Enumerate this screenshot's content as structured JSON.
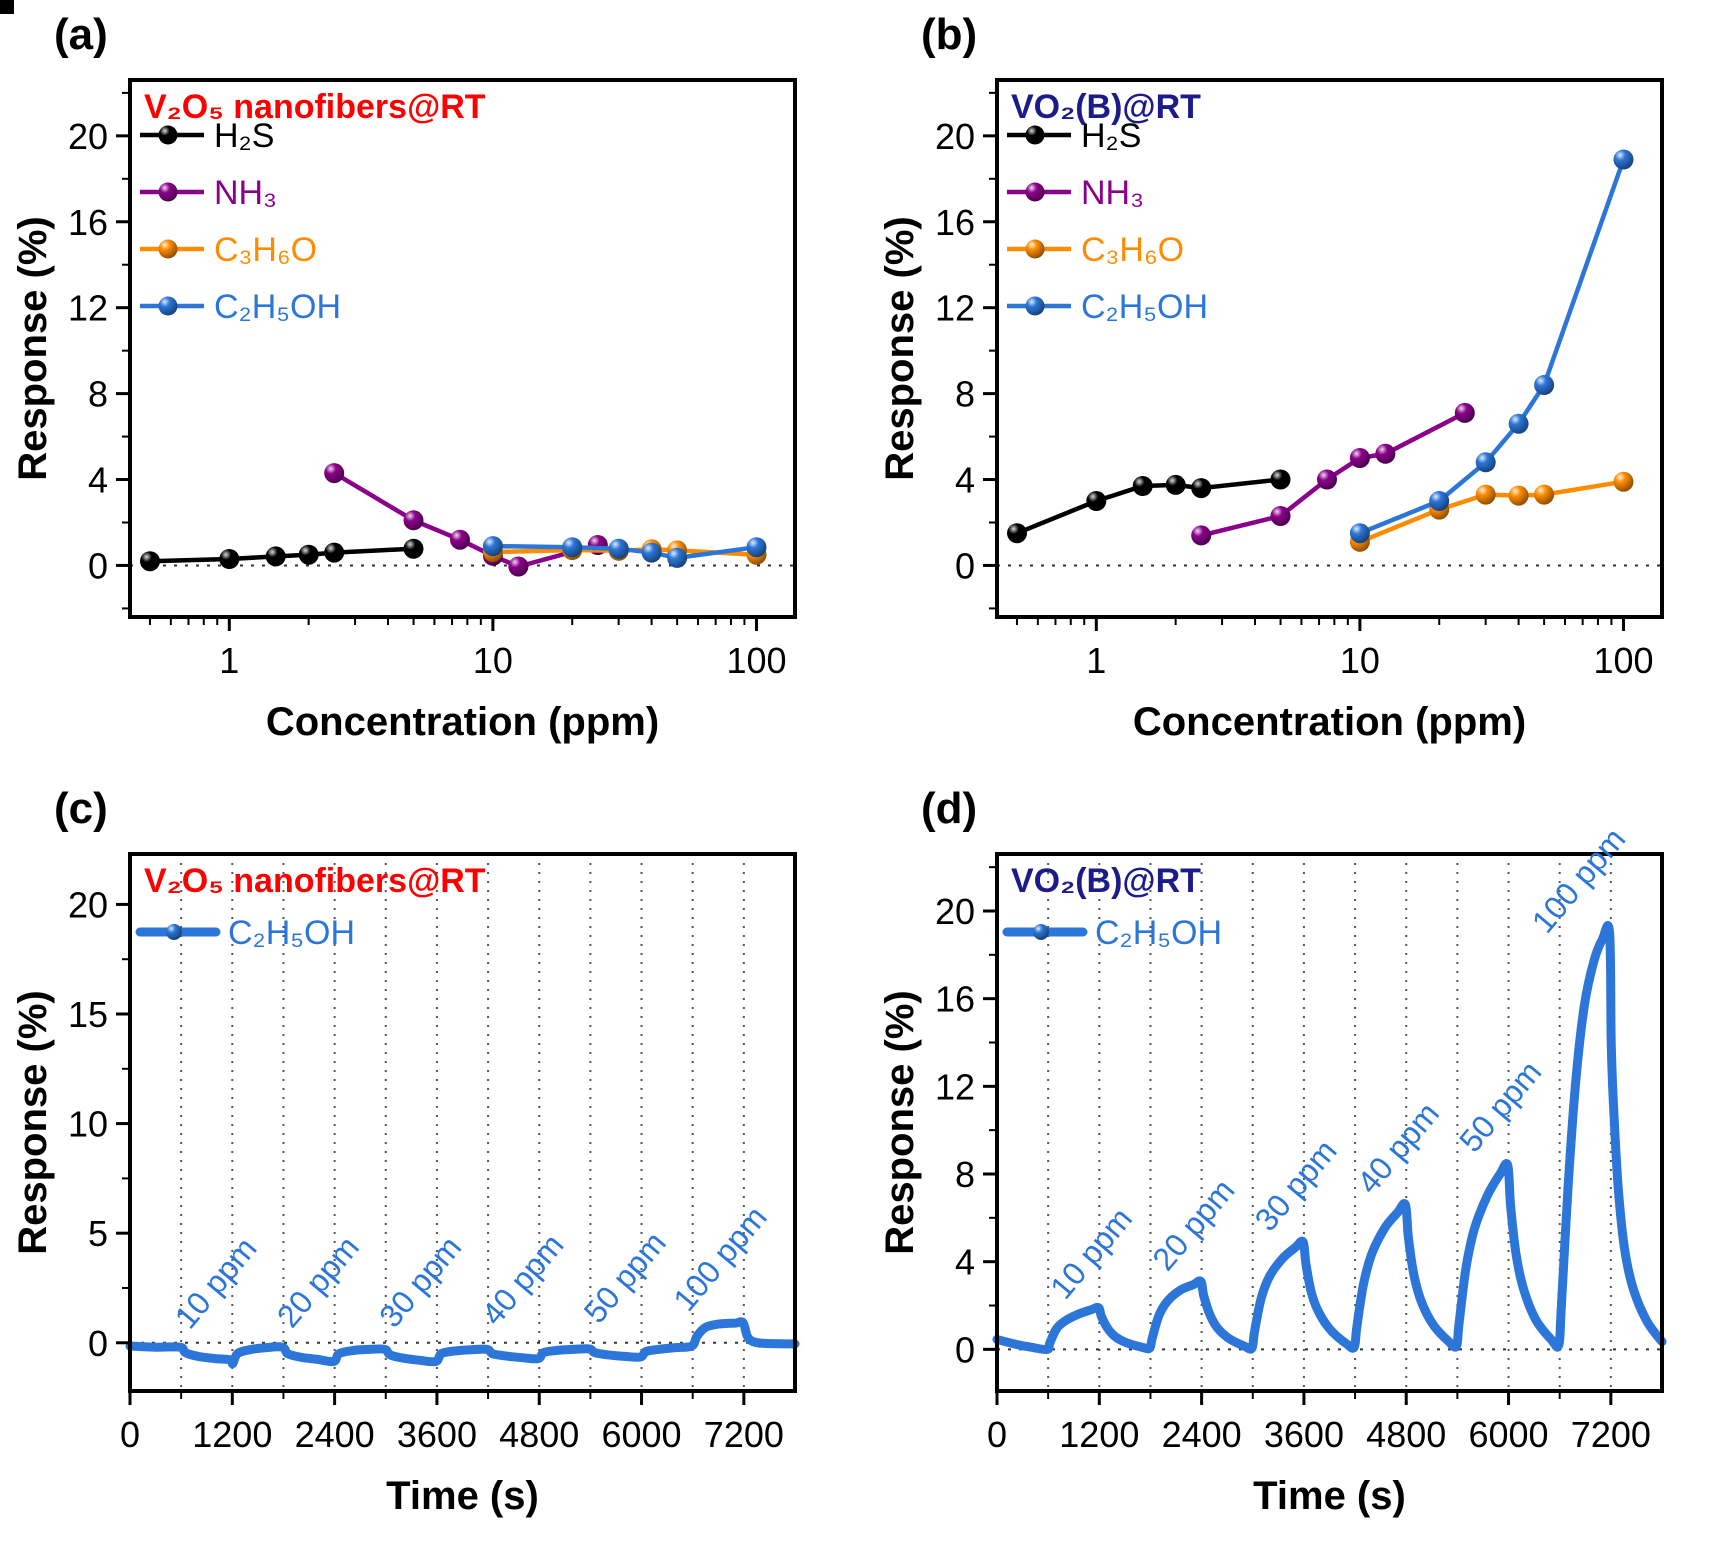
{
  "chart_data": [
    {
      "id": "a",
      "label": "(a)",
      "type": "scatter-line",
      "title": "V₂O₅ nanofibers@RT",
      "title_color": "#FF0000",
      "xlabel": "Concentration (ppm)",
      "ylabel": "Response (%)",
      "xscale": "log",
      "xlim": [
        0.42,
        140
      ],
      "xticks": [
        1,
        10,
        100
      ],
      "ylim": [
        -2.4,
        22.6
      ],
      "yticks": [
        0,
        4,
        8,
        12,
        16,
        20
      ],
      "yminor": 2,
      "zeroline": true,
      "legend_position": "top-left",
      "series": [
        {
          "name": "H₂S",
          "color": "#000000",
          "x": [
            0.5,
            1,
            1.5,
            2,
            2.5,
            5
          ],
          "y": [
            0.2,
            0.3,
            0.42,
            0.5,
            0.6,
            0.78
          ]
        },
        {
          "name": "NH₃",
          "color": "#8B008B",
          "x": [
            2.5,
            5,
            7.5,
            10,
            12.5,
            25
          ],
          "y": [
            4.3,
            2.1,
            1.2,
            0.45,
            -0.05,
            0.95
          ]
        },
        {
          "name": "C₃H₆O",
          "color": "#FF8C00",
          "x": [
            10,
            20,
            30,
            40,
            50,
            100
          ],
          "y": [
            0.62,
            0.72,
            0.68,
            0.75,
            0.7,
            0.5
          ]
        },
        {
          "name": "C₂H₅OH",
          "color": "#2B76D8",
          "x": [
            10,
            20,
            30,
            40,
            50,
            100
          ],
          "y": [
            0.9,
            0.85,
            0.78,
            0.6,
            0.35,
            0.85
          ]
        }
      ]
    },
    {
      "id": "b",
      "label": "(b)",
      "type": "scatter-line",
      "title": "VO₂(B)@RT",
      "title_color": "#1B1B8A",
      "xlabel": "Concentration (ppm)",
      "ylabel": "Response (%)",
      "xscale": "log",
      "xlim": [
        0.42,
        140
      ],
      "xticks": [
        1,
        10,
        100
      ],
      "ylim": [
        -2.4,
        22.6
      ],
      "yticks": [
        0,
        4,
        8,
        12,
        16,
        20
      ],
      "yminor": 2,
      "zeroline": true,
      "legend_position": "top-left",
      "series": [
        {
          "name": "H₂S",
          "color": "#000000",
          "x": [
            0.5,
            1,
            1.5,
            2,
            2.5,
            5
          ],
          "y": [
            1.5,
            3.0,
            3.7,
            3.75,
            3.6,
            4.0
          ]
        },
        {
          "name": "NH₃",
          "color": "#8B008B",
          "x": [
            2.5,
            5,
            7.5,
            10,
            12.5,
            25
          ],
          "y": [
            1.4,
            2.3,
            4.0,
            5.0,
            5.2,
            7.1
          ]
        },
        {
          "name": "C₃H₆O",
          "color": "#FF8C00",
          "x": [
            10,
            20,
            30,
            40,
            50,
            100
          ],
          "y": [
            1.1,
            2.6,
            3.3,
            3.25,
            3.3,
            3.9
          ]
        },
        {
          "name": "C₂H₅OH",
          "color": "#2B76D8",
          "x": [
            10,
            20,
            30,
            40,
            50,
            100
          ],
          "y": [
            1.5,
            3.0,
            4.8,
            6.6,
            8.4,
            18.9
          ]
        }
      ]
    },
    {
      "id": "c",
      "label": "(c)",
      "type": "time-series",
      "title": "V₂O₅ nanofibers@RT",
      "title_color": "#FF0000",
      "xlabel": "Time (s)",
      "ylabel": "Response (%)",
      "xscale": "linear",
      "xlim": [
        0,
        7800
      ],
      "xticks": [
        0,
        1200,
        2400,
        3600,
        4800,
        6000,
        7200
      ],
      "xminor": 600,
      "grid_every": 600,
      "ylim": [
        -2.2,
        22.3
      ],
      "yticks": [
        0,
        5,
        10,
        15,
        20
      ],
      "yminor": 2.5,
      "zeroline": true,
      "annotation_rotation": -50,
      "annotations": [
        {
          "text": "10 ppm",
          "t": 700,
          "y": 0.55
        },
        {
          "text": "20 ppm",
          "t": 1900,
          "y": 0.6
        },
        {
          "text": "30 ppm",
          "t": 3100,
          "y": 0.6
        },
        {
          "text": "40 ppm",
          "t": 4300,
          "y": 0.7
        },
        {
          "text": "50 ppm",
          "t": 5500,
          "y": 0.8
        },
        {
          "text": "100 ppm",
          "t": 6550,
          "y": 1.35
        }
      ],
      "series": [
        {
          "name": "C₂H₅OH",
          "color": "#2B76D8",
          "points": [
            [
              0,
              -0.15
            ],
            [
              300,
              -0.2
            ],
            [
              590,
              -0.2
            ],
            [
              650,
              -0.45
            ],
            [
              800,
              -0.62
            ],
            [
              1000,
              -0.72
            ],
            [
              1180,
              -0.78
            ],
            [
              1205,
              -0.95
            ],
            [
              1260,
              -0.5
            ],
            [
              1400,
              -0.32
            ],
            [
              1600,
              -0.22
            ],
            [
              1790,
              -0.2
            ],
            [
              1850,
              -0.5
            ],
            [
              2000,
              -0.66
            ],
            [
              2200,
              -0.76
            ],
            [
              2390,
              -0.85
            ],
            [
              2450,
              -0.5
            ],
            [
              2600,
              -0.36
            ],
            [
              2800,
              -0.3
            ],
            [
              2990,
              -0.3
            ],
            [
              3050,
              -0.55
            ],
            [
              3200,
              -0.7
            ],
            [
              3400,
              -0.8
            ],
            [
              3590,
              -0.85
            ],
            [
              3650,
              -0.5
            ],
            [
              3800,
              -0.38
            ],
            [
              4000,
              -0.32
            ],
            [
              4190,
              -0.3
            ],
            [
              4250,
              -0.5
            ],
            [
              4400,
              -0.6
            ],
            [
              4600,
              -0.68
            ],
            [
              4790,
              -0.72
            ],
            [
              4850,
              -0.45
            ],
            [
              5000,
              -0.35
            ],
            [
              5200,
              -0.3
            ],
            [
              5390,
              -0.28
            ],
            [
              5450,
              -0.45
            ],
            [
              5600,
              -0.55
            ],
            [
              5800,
              -0.62
            ],
            [
              5990,
              -0.65
            ],
            [
              6050,
              -0.4
            ],
            [
              6200,
              -0.3
            ],
            [
              6400,
              -0.22
            ],
            [
              6590,
              -0.15
            ],
            [
              6650,
              0.3
            ],
            [
              6750,
              0.7
            ],
            [
              6900,
              0.85
            ],
            [
              7100,
              0.9
            ],
            [
              7190,
              0.92
            ],
            [
              7240,
              0.3
            ],
            [
              7310,
              0.05
            ],
            [
              7450,
              -0.03
            ],
            [
              7800,
              -0.05
            ]
          ]
        }
      ]
    },
    {
      "id": "d",
      "label": "(d)",
      "type": "time-series",
      "title": "VO₂(B)@RT",
      "title_color": "#1B1B8A",
      "xlabel": "Time (s)",
      "ylabel": "Response (%)",
      "xscale": "linear",
      "xlim": [
        0,
        7800
      ],
      "xticks": [
        0,
        1200,
        2400,
        3600,
        4800,
        6000,
        7200
      ],
      "xminor": 600,
      "grid_every": 600,
      "ylim": [
        -1.9,
        22.6
      ],
      "yticks": [
        0,
        4,
        8,
        12,
        16,
        20
      ],
      "yminor": 2,
      "zeroline": true,
      "annotation_rotation": -50,
      "annotations": [
        {
          "text": "10 ppm",
          "t": 800,
          "y": 2.2
        },
        {
          "text": "20 ppm",
          "t": 2000,
          "y": 3.5
        },
        {
          "text": "30 ppm",
          "t": 3200,
          "y": 5.3
        },
        {
          "text": "40 ppm",
          "t": 4400,
          "y": 7.0
        },
        {
          "text": "50 ppm",
          "t": 5600,
          "y": 8.9
        },
        {
          "text": "100 ppm",
          "t": 6450,
          "y": 18.9
        }
      ],
      "series": [
        {
          "name": "C₂H₅OH",
          "color": "#2B76D8",
          "points": [
            [
              0,
              0.45
            ],
            [
              200,
              0.25
            ],
            [
              400,
              0.1
            ],
            [
              590,
              0.0
            ],
            [
              620,
              0.3
            ],
            [
              700,
              0.95
            ],
            [
              800,
              1.3
            ],
            [
              950,
              1.6
            ],
            [
              1100,
              1.8
            ],
            [
              1190,
              1.9
            ],
            [
              1225,
              1.5
            ],
            [
              1290,
              1.0
            ],
            [
              1380,
              0.6
            ],
            [
              1520,
              0.3
            ],
            [
              1700,
              0.1
            ],
            [
              1790,
              0.05
            ],
            [
              1820,
              0.5
            ],
            [
              1900,
              1.55
            ],
            [
              2000,
              2.2
            ],
            [
              2150,
              2.7
            ],
            [
              2300,
              2.95
            ],
            [
              2390,
              3.1
            ],
            [
              2425,
              2.45
            ],
            [
              2490,
              1.65
            ],
            [
              2580,
              1.0
            ],
            [
              2720,
              0.5
            ],
            [
              2900,
              0.15
            ],
            [
              2990,
              0.05
            ],
            [
              3020,
              0.8
            ],
            [
              3100,
              2.35
            ],
            [
              3200,
              3.35
            ],
            [
              3350,
              4.15
            ],
            [
              3500,
              4.65
            ],
            [
              3590,
              4.9
            ],
            [
              3625,
              3.85
            ],
            [
              3690,
              2.55
            ],
            [
              3780,
              1.65
            ],
            [
              3920,
              0.85
            ],
            [
              4100,
              0.25
            ],
            [
              4190,
              0.1
            ],
            [
              4220,
              1.0
            ],
            [
              4300,
              3.0
            ],
            [
              4400,
              4.4
            ],
            [
              4550,
              5.55
            ],
            [
              4700,
              6.25
            ],
            [
              4790,
              6.6
            ],
            [
              4825,
              5.1
            ],
            [
              4890,
              3.4
            ],
            [
              4980,
              2.15
            ],
            [
              5120,
              1.1
            ],
            [
              5300,
              0.35
            ],
            [
              5390,
              0.15
            ],
            [
              5420,
              1.2
            ],
            [
              5500,
              3.7
            ],
            [
              5600,
              5.5
            ],
            [
              5750,
              7.0
            ],
            [
              5900,
              8.0
            ],
            [
              5990,
              8.4
            ],
            [
              6025,
              6.5
            ],
            [
              6090,
              4.3
            ],
            [
              6180,
              2.7
            ],
            [
              6320,
              1.35
            ],
            [
              6500,
              0.45
            ],
            [
              6590,
              0.2
            ],
            [
              6620,
              2.0
            ],
            [
              6700,
              7.5
            ],
            [
              6790,
              12.3
            ],
            [
              6890,
              15.7
            ],
            [
              7000,
              17.7
            ],
            [
              7100,
              18.7
            ],
            [
              7185,
              19.0
            ],
            [
              7205,
              13.8
            ],
            [
              7240,
              10.4
            ],
            [
              7290,
              7.2
            ],
            [
              7360,
              4.6
            ],
            [
              7460,
              2.8
            ],
            [
              7620,
              1.3
            ],
            [
              7800,
              0.35
            ]
          ]
        }
      ]
    }
  ]
}
